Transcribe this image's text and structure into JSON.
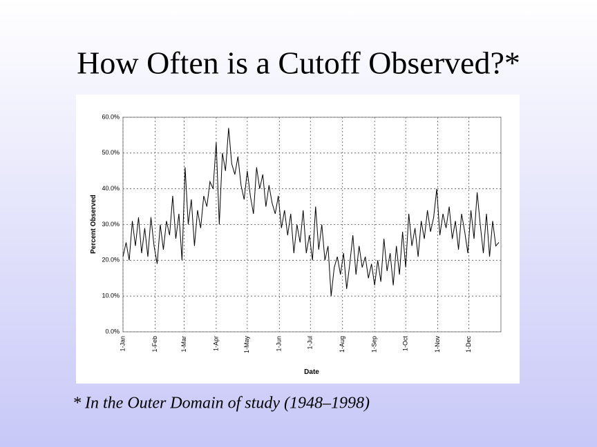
{
  "title": "How Often is a Cutoff Observed?*",
  "footnote": "* In the Outer Domain of study (1948–1998)",
  "chart_data": {
    "type": "line",
    "xlabel": "Date",
    "ylabel": "Percent Observed",
    "color": "#000000",
    "grid": true,
    "x": [
      1,
      4,
      7,
      10,
      13,
      16,
      19,
      22,
      25,
      28,
      31,
      34,
      37,
      40,
      43,
      46,
      49,
      52,
      55,
      58,
      61,
      64,
      67,
      70,
      73,
      76,
      79,
      82,
      85,
      88,
      91,
      94,
      97,
      100,
      103,
      106,
      109,
      112,
      115,
      118,
      121,
      124,
      127,
      130,
      133,
      136,
      139,
      142,
      145,
      148,
      151,
      154,
      157,
      160,
      163,
      166,
      169,
      172,
      175,
      178,
      181,
      184,
      187,
      190,
      193,
      196,
      199,
      202,
      205,
      208,
      211,
      214,
      217,
      220,
      223,
      226,
      229,
      232,
      235,
      238,
      241,
      244,
      247,
      250,
      253,
      256,
      259,
      262,
      265,
      268,
      271,
      274,
      277,
      280,
      283,
      286,
      289,
      292,
      295,
      298,
      301,
      304,
      307,
      310,
      313,
      316,
      319,
      322,
      325,
      328,
      331,
      334,
      337,
      340,
      343,
      346,
      349,
      352,
      355,
      358,
      361,
      364
    ],
    "values": [
      21,
      25,
      20,
      31,
      24,
      32,
      22,
      29,
      21,
      32,
      24,
      19,
      30,
      23,
      31,
      27,
      38,
      26,
      33,
      20,
      46,
      30,
      37,
      24,
      34,
      29,
      38,
      35,
      42,
      40,
      53,
      30,
      50,
      45,
      57,
      47,
      44,
      49,
      41,
      37,
      45,
      38,
      33,
      46,
      40,
      44,
      35,
      41,
      36,
      33,
      38,
      29,
      34,
      27,
      33,
      22,
      30,
      25,
      34,
      22,
      27,
      20,
      35,
      23,
      30,
      20,
      24,
      10,
      18,
      21,
      16,
      22,
      12,
      19,
      27,
      16,
      24,
      18,
      21,
      15,
      19,
      13,
      20,
      14,
      26,
      17,
      22,
      13,
      24,
      16,
      28,
      18,
      33,
      24,
      29,
      21,
      31,
      26,
      34,
      28,
      32,
      40,
      27,
      33,
      29,
      35,
      26,
      31,
      23,
      33,
      28,
      22,
      34,
      26,
      39,
      30,
      22,
      33,
      21,
      31,
      24,
      25
    ],
    "xlim": [
      1,
      366
    ],
    "xticks": [
      {
        "value": 1,
        "label": "1-Jan"
      },
      {
        "value": 32,
        "label": "1-Feb"
      },
      {
        "value": 60,
        "label": "1-Mar"
      },
      {
        "value": 91,
        "label": "1-Apr"
      },
      {
        "value": 121,
        "label": "1-May"
      },
      {
        "value": 152,
        "label": "1-Jun"
      },
      {
        "value": 182,
        "label": "1-Jul"
      },
      {
        "value": 213,
        "label": "1-Aug"
      },
      {
        "value": 244,
        "label": "1-Sep"
      },
      {
        "value": 274,
        "label": "1-Oct"
      },
      {
        "value": 305,
        "label": "1-Nov"
      },
      {
        "value": 335,
        "label": "1-Dec"
      }
    ],
    "ylim": [
      0,
      60
    ],
    "yticks": [
      {
        "value": 0,
        "label": "0.0%"
      },
      {
        "value": 10,
        "label": "10.0%"
      },
      {
        "value": 20,
        "label": "20.0%"
      },
      {
        "value": 30,
        "label": "30.0%"
      },
      {
        "value": 40,
        "label": "40.0%"
      },
      {
        "value": 50,
        "label": "50.0%"
      },
      {
        "value": 60,
        "label": "60.0%"
      }
    ]
  }
}
